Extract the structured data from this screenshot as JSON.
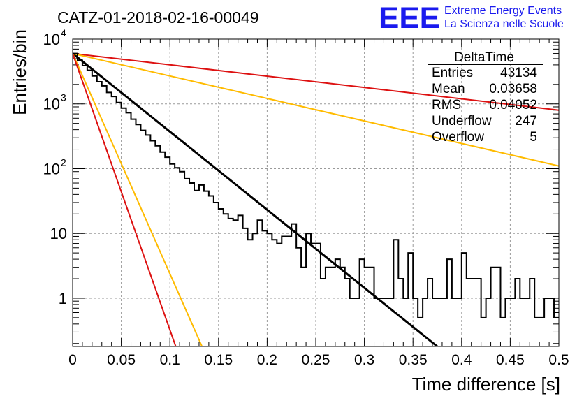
{
  "header": {
    "run_title": "CATZ-01-2018-02-16-00049",
    "logo_text": "EEE",
    "logo_line1": "Extreme Energy Events",
    "logo_line2": "La Scienza nelle Scuole"
  },
  "stats_box": {
    "title": "DeltaTime",
    "rows": [
      {
        "label": "Entries",
        "value": "43134"
      },
      {
        "label": "Mean",
        "value": "0.03658"
      },
      {
        "label": "RMS",
        "value": "0.04052"
      },
      {
        "label": "Underflow",
        "value": "247"
      },
      {
        "label": "Overflow",
        "value": "5"
      }
    ]
  },
  "colors": {
    "histogram": "#000000",
    "fit": "#000000",
    "red_lines": "#dd1111",
    "orange_lines": "#ffbb00",
    "grid": "#9a9a9a",
    "logo": "#1a1aee"
  },
  "chart_data": {
    "type": "line",
    "xlabel": "Time difference [s]",
    "ylabel": "Entries/bin",
    "xlim": [
      0,
      0.5
    ],
    "ylim": [
      0.18,
      10000
    ],
    "y_scale": "log",
    "grid": true,
    "x_ticks": [
      "0",
      "0.05",
      "0.1",
      "0.15",
      "0.2",
      "0.25",
      "0.3",
      "0.35",
      "0.4",
      "0.45",
      "0.5"
    ],
    "y_ticks": [
      {
        "value": 1,
        "label": "1"
      },
      {
        "value": 10,
        "label": "10"
      },
      {
        "value": 100,
        "label": "10",
        "exp": "2"
      },
      {
        "value": 1000,
        "label": "10",
        "exp": "3"
      },
      {
        "value": 10000,
        "label": "10",
        "exp": "4"
      }
    ],
    "histogram": {
      "bin_width": 0.005,
      "values": [
        6000,
        4700,
        3900,
        3300,
        2700,
        2200,
        1900,
        1500,
        1300,
        1050,
        860,
        730,
        580,
        480,
        390,
        330,
        270,
        225,
        180,
        150,
        118,
        103,
        90,
        70,
        60,
        46,
        56,
        45,
        38,
        30,
        24,
        20,
        17,
        16,
        19,
        12,
        8,
        10,
        16,
        11,
        10,
        8,
        7,
        9,
        9,
        14,
        6,
        3,
        10,
        7,
        7,
        2,
        3,
        3,
        4,
        3,
        2,
        1,
        1,
        4,
        3,
        3,
        1,
        1,
        1,
        1,
        8,
        2,
        1,
        5,
        1,
        0.5,
        1,
        2,
        1,
        1,
        1,
        4,
        1,
        1,
        5,
        2,
        2,
        2,
        0.5,
        1,
        3,
        3,
        0.5,
        1,
        1,
        2,
        1,
        1,
        2,
        0.5,
        0.5,
        1,
        1,
        0.5
      ]
    },
    "series": [
      {
        "style": "fit",
        "x": [
          0,
          0.375
        ],
        "y": [
          6000,
          0.18
        ]
      },
      {
        "style": "red",
        "x": [
          0,
          0.5
        ],
        "y": [
          6000,
          800
        ]
      },
      {
        "style": "orange",
        "x": [
          0,
          0.5
        ],
        "y": [
          6000,
          110
        ]
      },
      {
        "style": "orange",
        "x": [
          0,
          0.133
        ],
        "y": [
          6000,
          0.18
        ]
      },
      {
        "style": "red",
        "x": [
          0,
          0.106
        ],
        "y": [
          6000,
          0.18
        ]
      }
    ]
  }
}
